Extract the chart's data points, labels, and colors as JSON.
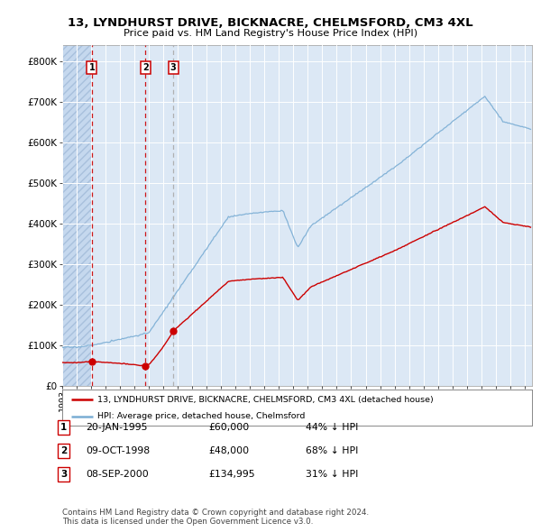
{
  "title_line1": "13, LYNDHURST DRIVE, BICKNACRE, CHELMSFORD, CM3 4XL",
  "title_line2": "Price paid vs. HM Land Registry's House Price Index (HPI)",
  "sale_dates_num": [
    1995.05,
    1998.77,
    2000.69
  ],
  "sale_prices": [
    60000,
    48000,
    134995
  ],
  "sale_labels": [
    "1",
    "2",
    "3"
  ],
  "ylabel_ticks": [
    "£0",
    "£100K",
    "£200K",
    "£300K",
    "£400K",
    "£500K",
    "£600K",
    "£700K",
    "£800K"
  ],
  "ytick_values": [
    0,
    100000,
    200000,
    300000,
    400000,
    500000,
    600000,
    700000,
    800000
  ],
  "xlim": [
    1993.0,
    2025.5
  ],
  "ylim": [
    0,
    840000
  ],
  "plot_bg_color": "#dce8f5",
  "legend_entry1": "13, LYNDHURST DRIVE, BICKNACRE, CHELMSFORD, CM3 4XL (detached house)",
  "legend_entry2": "HPI: Average price, detached house, Chelmsford",
  "table_rows": [
    {
      "label": "1",
      "date": "20-JAN-1995",
      "price": "£60,000",
      "hpi": "44% ↓ HPI"
    },
    {
      "label": "2",
      "date": "09-OCT-1998",
      "price": "£48,000",
      "hpi": "68% ↓ HPI"
    },
    {
      "label": "3",
      "date": "08-SEP-2000",
      "price": "£134,995",
      "hpi": "31% ↓ HPI"
    }
  ],
  "footer_text": "Contains HM Land Registry data © Crown copyright and database right 2024.\nThis data is licensed under the Open Government Licence v3.0.",
  "red_line_color": "#cc0000",
  "blue_line_color": "#7aadd4",
  "marker_color": "#cc0000"
}
